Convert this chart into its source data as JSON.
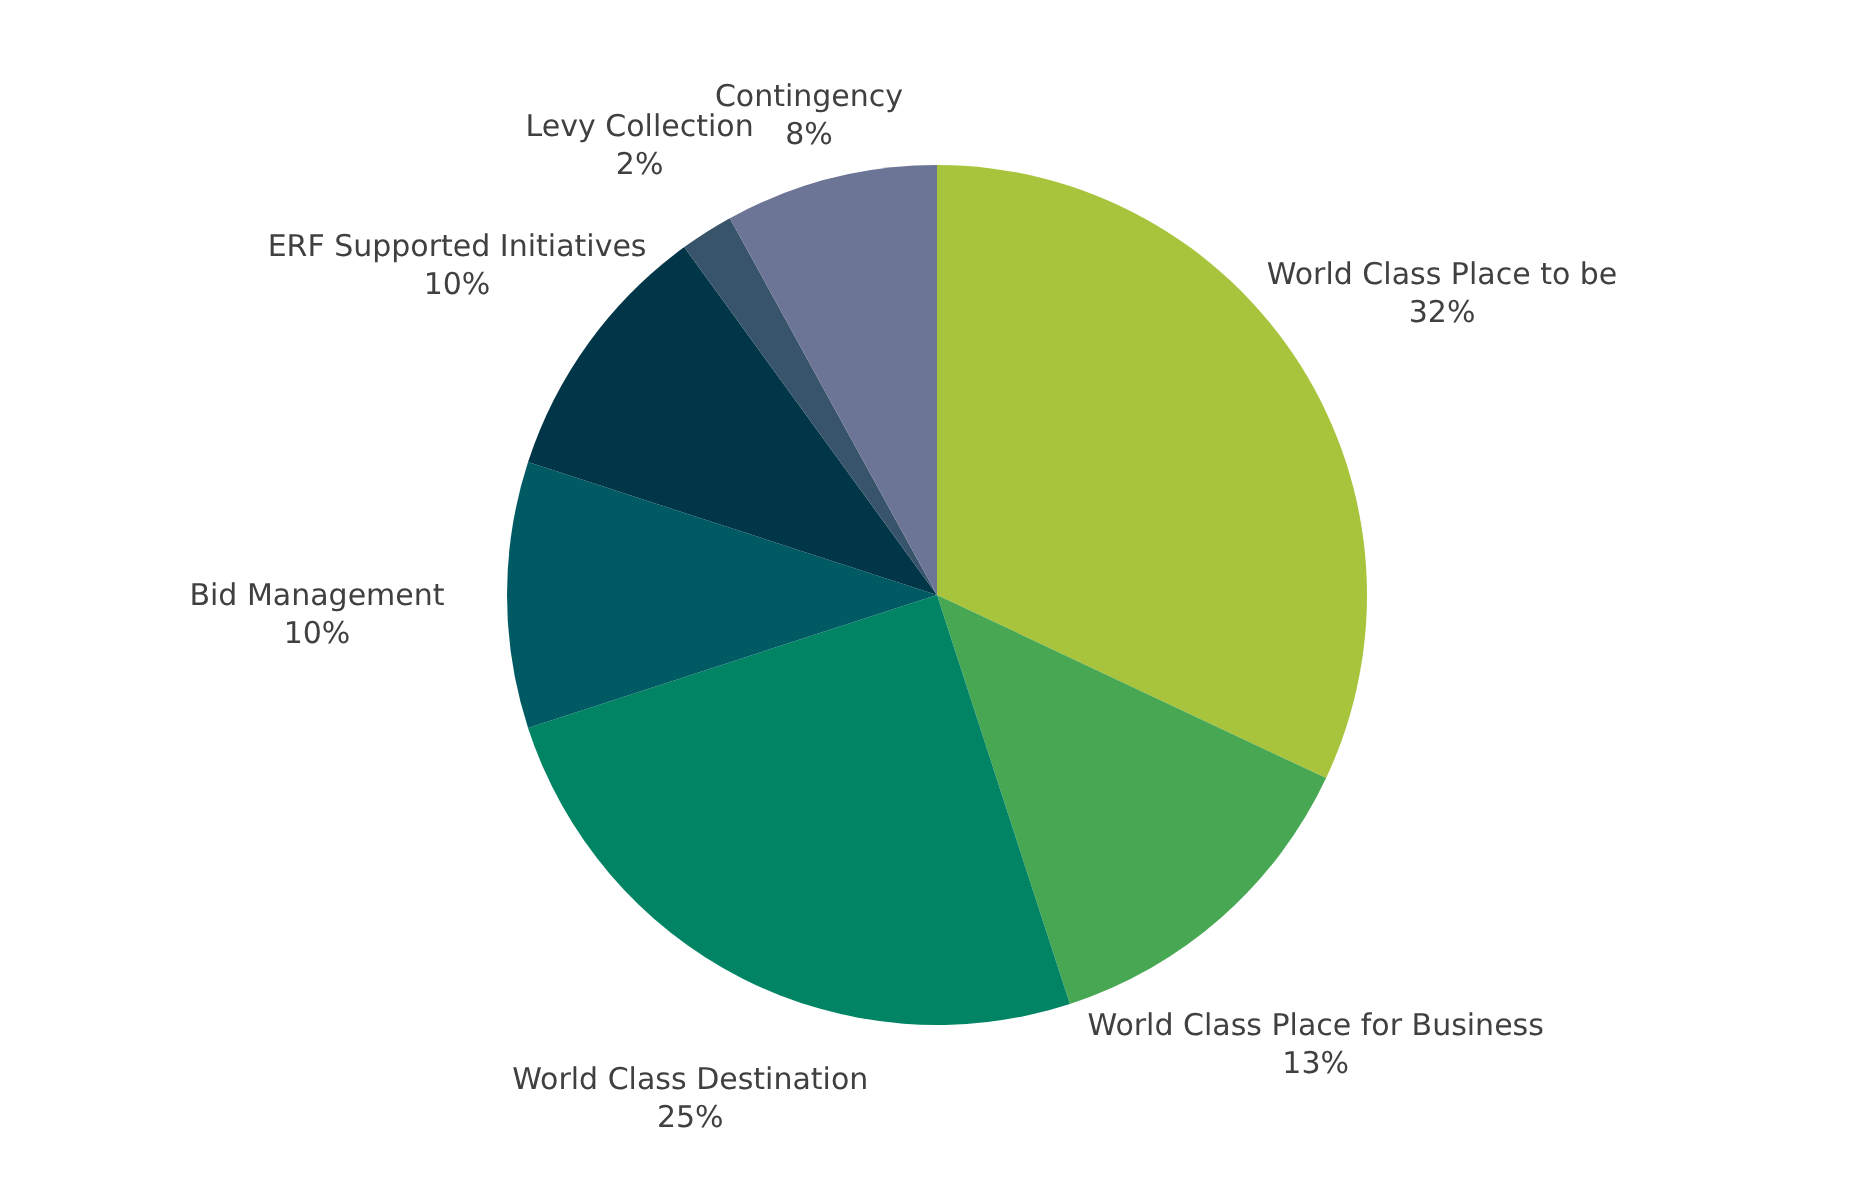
{
  "chart_data": {
    "type": "pie",
    "categories": [
      "World Class Place to be",
      "World Class Place for Business",
      "World Class Destination",
      "Bid Management",
      "ERF Supported Initiatives",
      "Levy Collection",
      "Contingency"
    ],
    "values": [
      32,
      13,
      25,
      10,
      10,
      2,
      8
    ],
    "value_labels": [
      "32%",
      "13%",
      "25%",
      "10%",
      "10%",
      "2%",
      "8%"
    ],
    "colors": [
      "#a8c43c",
      "#47a752",
      "#008464",
      "#005a63",
      "#003648",
      "#37546a",
      "#6d7596"
    ]
  }
}
